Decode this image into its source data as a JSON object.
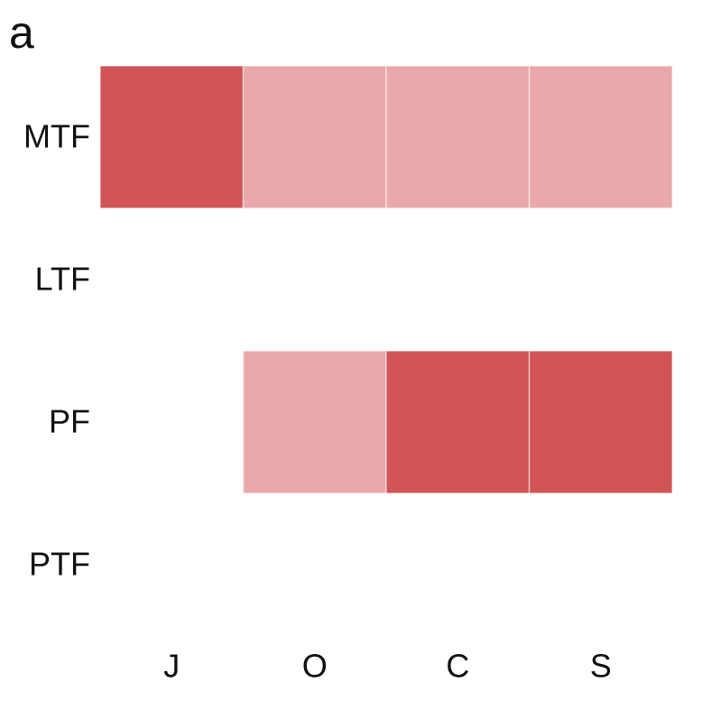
{
  "chart_data": {
    "type": "heatmap",
    "panel_label": "a",
    "categories": [
      "J",
      "O",
      "C",
      "S"
    ],
    "rows": [
      "MTF",
      "LTF",
      "PF",
      "PTF"
    ],
    "values": [
      [
        2,
        1,
        1,
        1
      ],
      [
        0,
        0,
        0,
        0
      ],
      [
        0,
        1,
        2,
        2
      ],
      [
        0,
        0,
        0,
        0
      ]
    ],
    "colorscale": [
      "#ffffff",
      "#e9a9aa",
      "#d15456"
    ]
  }
}
